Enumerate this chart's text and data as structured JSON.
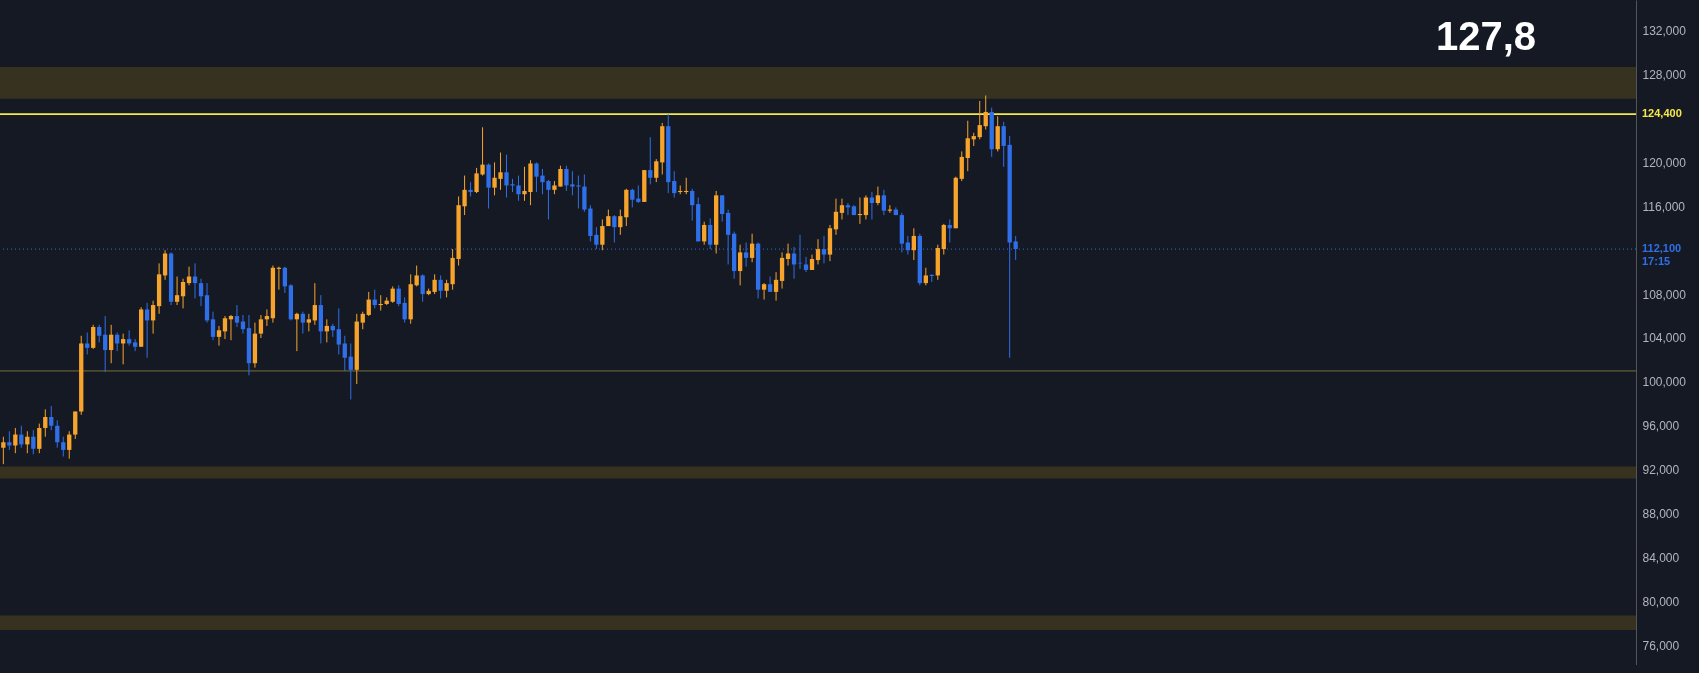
{
  "chart_data": {
    "type": "candlestick",
    "categories": [
      null,
      null,
      null,
      null,
      null,
      null,
      null,
      null,
      null,
      null,
      null,
      null,
      null,
      null,
      null,
      null,
      null,
      null,
      null,
      null,
      null,
      null,
      null,
      null,
      null,
      null,
      null,
      null,
      null,
      null,
      null,
      null,
      null,
      null,
      null,
      null,
      null,
      null,
      null,
      null,
      null,
      null,
      null,
      null,
      null,
      null,
      null,
      null,
      null,
      null,
      null,
      null,
      null,
      null,
      null,
      null,
      null,
      null,
      null,
      null,
      null,
      null,
      null,
      null,
      null,
      null,
      null,
      null,
      null,
      null,
      null,
      null,
      null,
      null,
      null,
      null,
      null,
      null,
      null,
      null,
      null,
      null,
      null,
      null,
      null,
      null,
      null,
      null,
      null,
      null,
      null,
      null,
      null,
      null,
      null,
      null,
      null,
      null,
      null,
      null,
      null,
      null,
      null,
      null,
      null,
      null,
      null,
      null,
      null,
      null,
      null,
      null,
      null,
      null,
      null,
      null,
      null,
      null,
      null,
      null,
      null,
      null,
      null,
      null,
      null,
      null,
      null,
      null,
      null,
      null,
      null,
      null,
      null,
      null,
      null,
      null,
      null,
      null,
      null,
      null,
      null,
      null,
      null,
      null,
      null,
      null,
      null,
      null,
      null,
      null,
      null,
      null,
      null,
      null,
      null,
      null,
      null,
      null,
      null,
      null,
      null,
      null,
      null,
      null,
      null,
      null,
      null,
      null,
      null,
      null,
      null,
      null,
      null,
      null,
      null,
      null,
      null,
      null,
      null,
      null,
      null,
      null,
      null,
      null,
      null,
      null,
      null,
      null,
      null,
      null,
      null,
      null,
      null,
      null,
      null,
      null,
      null,
      null,
      null,
      null,
      null,
      null,
      null,
      null,
      null,
      null,
      null,
      null,
      null,
      null,
      null,
      null,
      null,
      null,
      null,
      null,
      null,
      null,
      null,
      null,
      null,
      null,
      null,
      null,
      null,
      null,
      null,
      null,
      null,
      null,
      null,
      null,
      null,
      null,
      null,
      null,
      null,
      null,
      null,
      null,
      null,
      null,
      null,
      null,
      null,
      null,
      null,
      null,
      null,
      null,
      null,
      null,
      null,
      null,
      null,
      null,
      null,
      null,
      null,
      null,
      null,
      null,
      null,
      null,
      null,
      null,
      null,
      null,
      null,
      null,
      null,
      null,
      null
    ],
    "ohlc": [
      [
        94000,
        95000,
        92500,
        94500
      ],
      [
        94500,
        95500,
        93800,
        94200
      ],
      [
        94200,
        95800,
        93500,
        95200
      ],
      [
        95200,
        96000,
        94000,
        94300
      ],
      [
        94300,
        95500,
        93500,
        95000
      ],
      [
        95000,
        95600,
        93400,
        93900
      ],
      [
        93900,
        96200,
        93500,
        95800
      ],
      [
        95800,
        97500,
        95000,
        96800
      ],
      [
        96800,
        97800,
        95600,
        96000
      ],
      [
        96000,
        96500,
        94000,
        94500
      ],
      [
        94500,
        95000,
        93200,
        93800
      ],
      [
        93800,
        95500,
        93000,
        95200
      ],
      [
        95200,
        97300,
        94800,
        97300
      ],
      [
        97300,
        104200,
        97000,
        103500
      ],
      [
        103500,
        104500,
        102500,
        103100
      ],
      [
        103100,
        105200,
        103000,
        105000
      ],
      [
        105000,
        105200,
        103600,
        104200
      ],
      [
        104300,
        106000,
        100900,
        102900
      ],
      [
        102900,
        105200,
        101700,
        104300
      ],
      [
        104300,
        104500,
        102800,
        103500
      ],
      [
        103500,
        104400,
        101600,
        103900
      ],
      [
        103900,
        104700,
        103300,
        103500
      ],
      [
        103600,
        103900,
        102800,
        103200
      ],
      [
        103200,
        106800,
        103200,
        106600
      ],
      [
        106600,
        107200,
        102200,
        105600
      ],
      [
        105600,
        107400,
        104400,
        107000
      ],
      [
        106900,
        110800,
        106200,
        109800
      ],
      [
        109700,
        112000,
        109300,
        111700
      ],
      [
        111700,
        111800,
        107000,
        107300
      ],
      [
        107300,
        109600,
        107000,
        107900
      ],
      [
        107800,
        109400,
        106700,
        109100
      ],
      [
        109000,
        110500,
        108800,
        109600
      ],
      [
        109600,
        110800,
        107600,
        109000
      ],
      [
        109000,
        109400,
        106900,
        107800
      ],
      [
        107900,
        109000,
        105400,
        105600
      ],
      [
        105700,
        106400,
        103800,
        104100
      ],
      [
        104100,
        105100,
        103300,
        104700
      ],
      [
        104600,
        106000,
        103900,
        105800
      ],
      [
        105700,
        106100,
        103800,
        106000
      ],
      [
        106000,
        107000,
        105000,
        105400
      ],
      [
        105500,
        106100,
        104400,
        104800
      ],
      [
        104900,
        106100,
        100600,
        101700
      ],
      [
        101700,
        105400,
        101300,
        104400
      ],
      [
        104400,
        106100,
        104000,
        105700
      ],
      [
        105700,
        106600,
        105100,
        106000
      ],
      [
        105800,
        110600,
        105400,
        110400
      ],
      [
        110300,
        110500,
        108400,
        110400
      ],
      [
        110400,
        110500,
        108100,
        108700
      ],
      [
        108800,
        108900,
        105600,
        105700
      ],
      [
        105700,
        106300,
        102800,
        106200
      ],
      [
        106200,
        106400,
        104400,
        105400
      ],
      [
        105400,
        106200,
        104600,
        105700
      ],
      [
        105600,
        109000,
        105200,
        107000
      ],
      [
        107000,
        107900,
        103500,
        104600
      ],
      [
        104600,
        105700,
        103600,
        105100
      ],
      [
        105100,
        105300,
        104100,
        104700
      ],
      [
        104800,
        106700,
        102500,
        103400
      ],
      [
        103500,
        104200,
        101000,
        102200
      ],
      [
        102300,
        103500,
        98400,
        101100
      ],
      [
        101100,
        106200,
        99800,
        105500
      ],
      [
        105400,
        106400,
        104800,
        106200
      ],
      [
        106100,
        108200,
        106000,
        107500
      ],
      [
        107500,
        108400,
        106700,
        107000
      ],
      [
        107000,
        107900,
        106500,
        107100
      ],
      [
        107100,
        107700,
        107000,
        107400
      ],
      [
        107300,
        108700,
        107200,
        108500
      ],
      [
        108500,
        108800,
        106900,
        107100
      ],
      [
        107200,
        107700,
        105400,
        105700
      ],
      [
        105700,
        109800,
        105300,
        108900
      ],
      [
        108800,
        110600,
        108700,
        109700
      ],
      [
        109700,
        109800,
        107300,
        108000
      ],
      [
        108000,
        108500,
        107900,
        108300
      ],
      [
        108200,
        109800,
        108000,
        109300
      ],
      [
        109300,
        109700,
        107600,
        108300
      ],
      [
        108300,
        109300,
        107700,
        109000
      ],
      [
        108900,
        112100,
        108400,
        111300
      ],
      [
        111200,
        116900,
        110600,
        116100
      ],
      [
        116000,
        118800,
        115200,
        117500
      ],
      [
        117500,
        118200,
        116900,
        117300
      ],
      [
        117300,
        119500,
        117200,
        119000
      ],
      [
        118900,
        123200,
        118800,
        119800
      ],
      [
        119800,
        119900,
        115800,
        117700
      ],
      [
        117700,
        120000,
        117000,
        118600
      ],
      [
        118500,
        120900,
        117500,
        119100
      ],
      [
        119100,
        120700,
        116800,
        117900
      ],
      [
        118000,
        118500,
        117300,
        117900
      ],
      [
        117900,
        118800,
        116500,
        117100
      ],
      [
        117100,
        119600,
        116500,
        117400
      ],
      [
        117300,
        120200,
        116100,
        119900
      ],
      [
        119900,
        120000,
        117300,
        118700
      ],
      [
        118800,
        119400,
        117100,
        118200
      ],
      [
        118300,
        118400,
        114800,
        117500
      ],
      [
        117500,
        118300,
        117100,
        117900
      ],
      [
        117800,
        119700,
        117800,
        119400
      ],
      [
        119400,
        119700,
        117400,
        117900
      ],
      [
        118000,
        119200,
        117000,
        117800
      ],
      [
        117900,
        118800,
        115800,
        117800
      ],
      [
        117800,
        118900,
        115500,
        115700
      ],
      [
        115800,
        116100,
        112800,
        113300
      ],
      [
        113400,
        114100,
        112100,
        112500
      ],
      [
        112500,
        114800,
        112000,
        114200
      ],
      [
        114200,
        115700,
        114200,
        115100
      ],
      [
        115100,
        115200,
        112700,
        114100
      ],
      [
        114100,
        115700,
        113400,
        115100
      ],
      [
        115000,
        117600,
        114200,
        117500
      ],
      [
        117500,
        117600,
        115900,
        116600
      ],
      [
        116700,
        117900,
        116300,
        116400
      ],
      [
        116400,
        119300,
        116400,
        119300
      ],
      [
        119300,
        122300,
        118000,
        118600
      ],
      [
        118600,
        120300,
        118200,
        120100
      ],
      [
        120000,
        123600,
        118900,
        123300
      ],
      [
        123300,
        124400,
        117200,
        118200
      ],
      [
        118300,
        119200,
        116800,
        117200
      ],
      [
        117300,
        117900,
        117100,
        117400
      ],
      [
        117300,
        118600,
        117100,
        117400
      ],
      [
        117400,
        117600,
        114700,
        116100
      ],
      [
        116200,
        116800,
        112800,
        112800
      ],
      [
        112800,
        114600,
        112500,
        114300
      ],
      [
        114300,
        114900,
        112100,
        112500
      ],
      [
        112500,
        117400,
        111700,
        117000
      ],
      [
        117000,
        117000,
        114600,
        115300
      ],
      [
        115400,
        115700,
        110700,
        113400
      ],
      [
        113500,
        113700,
        109400,
        110100
      ],
      [
        110100,
        112500,
        108800,
        111800
      ],
      [
        111800,
        112700,
        110500,
        111300
      ],
      [
        111300,
        113500,
        110900,
        112600
      ],
      [
        112600,
        112700,
        107600,
        108400
      ],
      [
        108400,
        109000,
        107500,
        108900
      ],
      [
        108900,
        109600,
        108200,
        108200
      ],
      [
        108200,
        110000,
        107400,
        109300
      ],
      [
        109200,
        111800,
        108500,
        111300
      ],
      [
        111200,
        112600,
        110600,
        111700
      ],
      [
        111700,
        112300,
        109400,
        110700
      ],
      [
        110850,
        113400,
        110300,
        110800
      ],
      [
        110700,
        111400,
        110000,
        110200
      ],
      [
        110200,
        111600,
        110200,
        111200
      ],
      [
        111100,
        113000,
        110700,
        112100
      ],
      [
        112100,
        113300,
        110800,
        111600
      ],
      [
        111600,
        114300,
        111000,
        114000
      ],
      [
        113900,
        116700,
        113400,
        115500
      ],
      [
        115400,
        116700,
        114800,
        116100
      ],
      [
        116100,
        116300,
        115200,
        115900
      ],
      [
        116000,
        116100,
        115200,
        115200
      ],
      [
        115200,
        116800,
        114400,
        115300
      ],
      [
        115200,
        117000,
        114800,
        116800
      ],
      [
        116800,
        117300,
        114800,
        116300
      ],
      [
        116300,
        117800,
        116100,
        117000
      ],
      [
        117000,
        117500,
        115200,
        115600
      ],
      [
        115600,
        116100,
        115400,
        115700
      ],
      [
        115700,
        115900,
        115200,
        115200
      ],
      [
        115200,
        115400,
        111800,
        112600
      ],
      [
        112700,
        113300,
        111600,
        112000
      ],
      [
        112000,
        114000,
        111100,
        113300
      ],
      [
        113300,
        113500,
        108800,
        109000
      ],
      [
        109000,
        110400,
        108800,
        109700
      ],
      [
        109750,
        109800,
        109100,
        109650
      ],
      [
        109700,
        112500,
        109300,
        112200
      ],
      [
        112100,
        114400,
        111600,
        114300
      ],
      [
        114300,
        114800,
        112700,
        114000
      ],
      [
        114000,
        118700,
        114000,
        118600
      ],
      [
        118500,
        121000,
        118300,
        120500
      ],
      [
        120400,
        123800,
        119200,
        122200
      ],
      [
        122100,
        122700,
        121500,
        122400
      ],
      [
        122300,
        125600,
        122100,
        123400
      ],
      [
        123300,
        126100,
        123000,
        124600
      ],
      [
        124600,
        125000,
        120500,
        121200
      ],
      [
        121200,
        124200,
        121000,
        123300
      ],
      [
        123300,
        123700,
        119600,
        121500
      ],
      [
        121600,
        122400,
        102200,
        112700
      ],
      [
        112800,
        113300,
        111100,
        112100
      ],
      null,
      null,
      null,
      null,
      null,
      null,
      null,
      null,
      null,
      null,
      null,
      null,
      null,
      null,
      null,
      null,
      null,
      null,
      null,
      null,
      null,
      null,
      null,
      null,
      null,
      null,
      null,
      null,
      null,
      null,
      null,
      null,
      null,
      null,
      null,
      null,
      null,
      null,
      null,
      null,
      null,
      null,
      null,
      null,
      null,
      null,
      null,
      null,
      null,
      null,
      null,
      null,
      null,
      null,
      null,
      null,
      null,
      null,
      null,
      null,
      null,
      null,
      null,
      null,
      null,
      null,
      null,
      null,
      null,
      null,
      null,
      null,
      null,
      null,
      null,
      null,
      null,
      null,
      null,
      null,
      null,
      null,
      null,
      null,
      null,
      null,
      null,
      null,
      null,
      null,
      null,
      null,
      null,
      null,
      null,
      null,
      null,
      null,
      null,
      null,
      null,
      null,
      null
    ],
    "ylim": [
      74200,
      134800
    ],
    "yticks": [
      {
        "value": 76000,
        "label": "76,000"
      },
      {
        "value": 80000,
        "label": "80,000"
      },
      {
        "value": 84000,
        "label": "84,000"
      },
      {
        "value": 88000,
        "label": "88,000"
      },
      {
        "value": 92000,
        "label": "92,000"
      },
      {
        "value": 96000,
        "label": "96,000"
      },
      {
        "value": 100000,
        "label": "100,000"
      },
      {
        "value": 104000,
        "label": "104,000"
      },
      {
        "value": 108000,
        "label": "108,000"
      },
      {
        "value": 116000,
        "label": "116,000"
      },
      {
        "value": 120000,
        "label": "120,000"
      },
      {
        "value": 128000,
        "label": "128,000"
      },
      {
        "value": 132000,
        "label": "132,000"
      }
    ],
    "ref_lines": [
      {
        "axis": "y",
        "value": 124400,
        "label": "124,400",
        "color": "#f5e84a"
      },
      {
        "axis": "y",
        "value": 112100,
        "label": "112,100",
        "color": "#2f6fe8",
        "line_style": "dotted"
      },
      {
        "axis": "y",
        "value": 101000,
        "color": "#4d4a30"
      }
    ],
    "bands": [
      {
        "axis": "y",
        "from": 125800,
        "to": 128700,
        "color": "#37321f"
      },
      {
        "axis": "y",
        "from": 77400,
        "to": 78700,
        "color": "#37321f"
      },
      {
        "axis": "y",
        "from": 91200,
        "to": 92300,
        "color": "#37321f"
      }
    ],
    "annotations": [
      "127,8",
      "17:15"
    ],
    "grid": false
  }
}
